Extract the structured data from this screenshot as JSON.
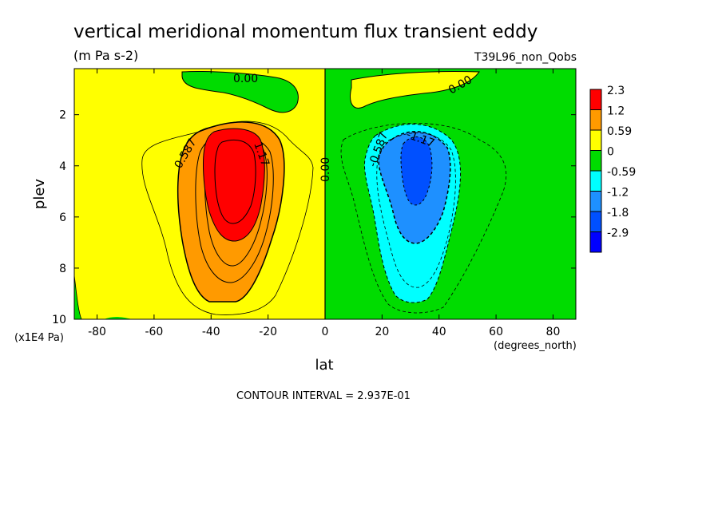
{
  "chart_data": {
    "type": "heatmap",
    "title": "vertical meridional momentum flux transient eddy",
    "subtitle": "(m Pa s-2)",
    "run_label": "T39L96_non_Qobs",
    "xlabel": "lat",
    "x_units": "(degrees_north)",
    "ylabel": "plev",
    "y_units": "(x1E4 Pa)",
    "xlim": [
      -88,
      88
    ],
    "ylim": [
      0.2,
      10
    ],
    "y_inverted": true,
    "x_ticks": [
      "-80",
      "-60",
      "-40",
      "-20",
      "0",
      "20",
      "40",
      "60",
      "80"
    ],
    "y_ticks": [
      "2",
      "4",
      "6",
      "8",
      "10"
    ],
    "contour_interval_text": "CONTOUR INTERVAL = 2.937E-01",
    "contour_labels": [
      "0.00",
      "0.00",
      "0.00",
      "0.587",
      "1.17",
      "-0.587",
      "-1.17"
    ],
    "colorbar": {
      "labels": [
        "2.3",
        "1.2",
        "0.59",
        "0",
        "-0.59",
        "-1.2",
        "-1.8",
        "-2.9"
      ],
      "colors": [
        "#ff0000",
        "#ff9a00",
        "#ffff00",
        "#00dc00",
        "#00ffff",
        "#1e90ff",
        "#0050ff",
        "#0000ff"
      ]
    },
    "features": [
      {
        "name": "positive-maximum",
        "lat": -33,
        "plev": 4.0,
        "value": 2.3
      },
      {
        "name": "negative-minimum",
        "lat": 33,
        "plev": 4.0,
        "value": -2.0
      },
      {
        "name": "zero-line",
        "lat": 0
      }
    ]
  }
}
